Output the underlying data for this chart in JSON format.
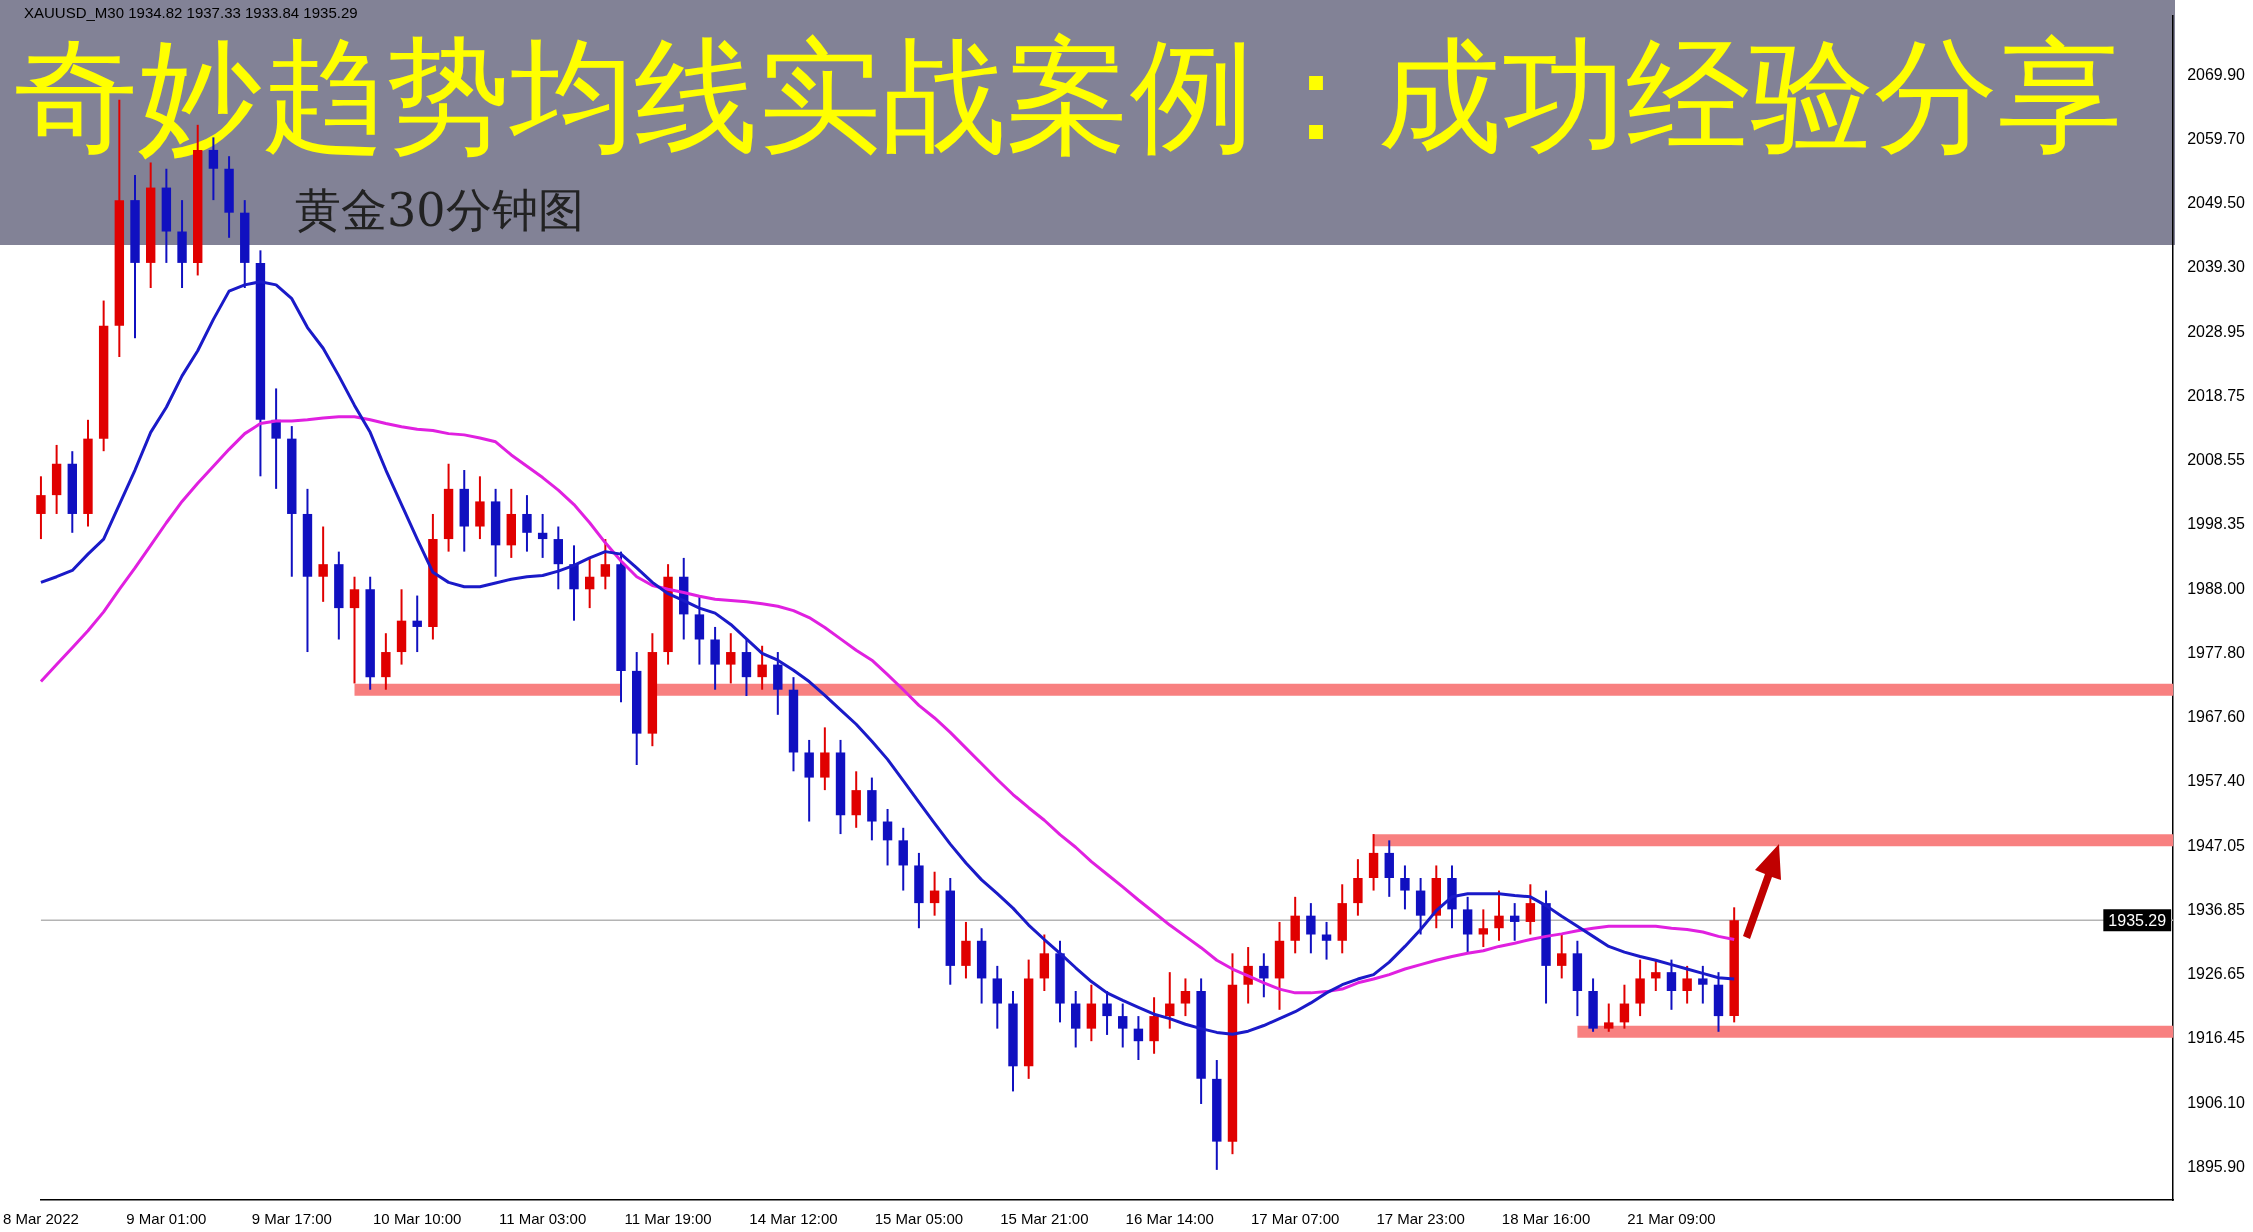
{
  "chart_data": {
    "type": "candlestick",
    "title": "奇妙趋势均线实战案例：成功经验分享",
    "subtitle": "黄金30分钟图",
    "annotations": [
      "XAUUSD_M30  1934.82 1937.33 1933.84 1935.29"
    ],
    "categories": [
      "8 Mar 2022",
      null,
      null,
      null,
      null,
      null,
      null,
      null,
      "9 Mar 01:00",
      null,
      null,
      null,
      null,
      null,
      null,
      null,
      "9 Mar 17:00",
      null,
      null,
      null,
      null,
      null,
      null,
      null,
      "10 Mar 10:00",
      null,
      null,
      null,
      null,
      null,
      null,
      null,
      "11 Mar 03:00",
      null,
      null,
      null,
      null,
      null,
      null,
      null,
      "11 Mar 19:00",
      null,
      null,
      null,
      null,
      null,
      null,
      null,
      "14 Mar 12:00",
      null,
      null,
      null,
      null,
      null,
      null,
      null,
      "15 Mar 05:00",
      null,
      null,
      null,
      null,
      null,
      null,
      null,
      "15 Mar 21:00",
      null,
      null,
      null,
      null,
      null,
      null,
      null,
      "16 Mar 14:00",
      null,
      null,
      null,
      null,
      null,
      null,
      null,
      "17 Mar 07:00",
      null,
      null,
      null,
      null,
      null,
      null,
      null,
      "17 Mar 23:00",
      null,
      null,
      null,
      null,
      null,
      null,
      null,
      "18 Mar 16:00",
      null,
      null,
      null,
      null,
      null,
      null,
      null,
      "21 Mar 09:00",
      null,
      null,
      null,
      null,
      null,
      null,
      null,
      null,
      null,
      null,
      null,
      null,
      null,
      null,
      null,
      null,
      null,
      null,
      null,
      null,
      null,
      null,
      null,
      null,
      null,
      null,
      null,
      null,
      null,
      null,
      null,
      null
    ],
    "ohlc": [
      [
        2000,
        2006,
        1996,
        2003
      ],
      [
        2003,
        2011,
        2000,
        2008
      ],
      [
        2008,
        2010,
        1997,
        2000
      ],
      [
        2000,
        2015,
        1998,
        2012
      ],
      [
        2012,
        2034,
        2010,
        2030
      ],
      [
        2030,
        2066,
        2025,
        2050
      ],
      [
        2050,
        2054,
        2028,
        2040
      ],
      [
        2040,
        2056,
        2036,
        2052
      ],
      [
        2052,
        2055,
        2040,
        2045
      ],
      [
        2045,
        2050,
        2036,
        2040
      ],
      [
        2040,
        2062,
        2038,
        2058
      ],
      [
        2058,
        2060,
        2050,
        2055
      ],
      [
        2055,
        2057,
        2044,
        2048
      ],
      [
        2048,
        2050,
        2036,
        2040
      ],
      [
        2040,
        2042,
        2006,
        2015
      ],
      [
        2015,
        2020,
        2004,
        2012
      ],
      [
        2012,
        2014,
        1990,
        2000
      ],
      [
        2000,
        2004,
        1978,
        1990
      ],
      [
        1990,
        1998,
        1986,
        1992
      ],
      [
        1992,
        1994,
        1980,
        1985
      ],
      [
        1985,
        1990,
        1973,
        1988
      ],
      [
        1988,
        1990,
        1972,
        1974
      ],
      [
        1974,
        1981,
        1972,
        1978
      ],
      [
        1978,
        1988,
        1976,
        1983
      ],
      [
        1983,
        1987,
        1978,
        1982
      ],
      [
        1982,
        2000,
        1980,
        1996
      ],
      [
        1996,
        2008,
        1994,
        2004
      ],
      [
        2004,
        2007,
        1994,
        1998
      ],
      [
        1998,
        2006,
        1996,
        2002
      ],
      [
        2002,
        2004,
        1990,
        1995
      ],
      [
        1995,
        2004,
        1993,
        2000
      ],
      [
        2000,
        2003,
        1994,
        1997
      ],
      [
        1997,
        2000,
        1993,
        1996
      ],
      [
        1996,
        1998,
        1988,
        1992
      ],
      [
        1992,
        1995,
        1983,
        1988
      ],
      [
        1988,
        1993,
        1985,
        1990
      ],
      [
        1990,
        1996,
        1988,
        1992
      ],
      [
        1992,
        1994,
        1970,
        1975
      ],
      [
        1975,
        1978,
        1960,
        1965
      ],
      [
        1965,
        1981,
        1963,
        1978
      ],
      [
        1978,
        1992,
        1976,
        1990
      ],
      [
        1990,
        1993,
        1980,
        1984
      ],
      [
        1984,
        1987,
        1976,
        1980
      ],
      [
        1980,
        1982,
        1972,
        1976
      ],
      [
        1976,
        1981,
        1973,
        1978
      ],
      [
        1978,
        1980,
        1971,
        1974
      ],
      [
        1974,
        1979,
        1972,
        1976
      ],
      [
        1976,
        1978,
        1968,
        1972
      ],
      [
        1972,
        1974,
        1959,
        1962
      ],
      [
        1962,
        1964,
        1951,
        1958
      ],
      [
        1958,
        1966,
        1956,
        1962
      ],
      [
        1962,
        1964,
        1949,
        1952
      ],
      [
        1952,
        1959,
        1950,
        1956
      ],
      [
        1956,
        1958,
        1948,
        1951
      ],
      [
        1951,
        1953,
        1944,
        1948
      ],
      [
        1948,
        1950,
        1940,
        1944
      ],
      [
        1944,
        1946,
        1934,
        1938
      ],
      [
        1938,
        1943,
        1936,
        1940
      ],
      [
        1940,
        1942,
        1925,
        1928
      ],
      [
        1928,
        1935,
        1926,
        1932
      ],
      [
        1932,
        1934,
        1922,
        1926
      ],
      [
        1926,
        1928,
        1918,
        1922
      ],
      [
        1922,
        1924,
        1908,
        1912
      ],
      [
        1912,
        1929,
        1910,
        1926
      ],
      [
        1926,
        1933,
        1924,
        1930
      ],
      [
        1930,
        1932,
        1919,
        1922
      ],
      [
        1922,
        1924,
        1915,
        1918
      ],
      [
        1918,
        1925,
        1916,
        1922
      ],
      [
        1922,
        1924,
        1917,
        1920
      ],
      [
        1920,
        1922,
        1915,
        1918
      ],
      [
        1918,
        1920,
        1913,
        1916
      ],
      [
        1916,
        1923,
        1914,
        1920
      ],
      [
        1920,
        1927,
        1918,
        1922
      ],
      [
        1922,
        1926,
        1920,
        1924
      ],
      [
        1924,
        1926,
        1906,
        1910
      ],
      [
        1910,
        1913,
        1895.5,
        1900
      ],
      [
        1900,
        1930,
        1898,
        1925
      ],
      [
        1925,
        1931,
        1922,
        1928
      ],
      [
        1928,
        1930,
        1923,
        1926
      ],
      [
        1926,
        1935,
        1921,
        1932
      ],
      [
        1932,
        1939,
        1930,
        1936
      ],
      [
        1936,
        1938,
        1930,
        1933
      ],
      [
        1933,
        1935,
        1929,
        1932
      ],
      [
        1932,
        1941,
        1930,
        1938
      ],
      [
        1938,
        1945,
        1936,
        1942
      ],
      [
        1942,
        1949,
        1940,
        1946
      ],
      [
        1946,
        1948,
        1939,
        1942
      ],
      [
        1942,
        1944,
        1937,
        1940
      ],
      [
        1940,
        1942,
        1933,
        1936
      ],
      [
        1936,
        1944,
        1934,
        1942
      ],
      [
        1942,
        1944,
        1934,
        1937
      ],
      [
        1937,
        1939,
        1930,
        1933
      ],
      [
        1933,
        1937,
        1931,
        1934
      ],
      [
        1934,
        1940,
        1932,
        1936
      ],
      [
        1936,
        1938,
        1932,
        1935
      ],
      [
        1935,
        1941,
        1933,
        1938
      ],
      [
        1938,
        1940,
        1922,
        1928
      ],
      [
        1928,
        1933,
        1926,
        1930
      ],
      [
        1930,
        1932,
        1920,
        1924
      ],
      [
        1924,
        1926,
        1917.5,
        1918
      ],
      [
        1918,
        1922,
        1917.5,
        1919
      ],
      [
        1919,
        1925,
        1918,
        1922
      ],
      [
        1922,
        1929,
        1920,
        1926
      ],
      [
        1926,
        1929,
        1924,
        1927
      ],
      [
        1927,
        1929,
        1921,
        1924
      ],
      [
        1924,
        1928,
        1922,
        1926
      ],
      [
        1926,
        1928,
        1922,
        1925
      ],
      [
        1925,
        1927,
        1917.5,
        1920
      ],
      [
        1920,
        1937.33,
        1919,
        1935.29
      ],
      null,
      null,
      null,
      null,
      null,
      null,
      null,
      null,
      null,
      null,
      null,
      null,
      null,
      null,
      null,
      null,
      null,
      null,
      null,
      null,
      null,
      null,
      null,
      null,
      null,
      null,
      null,
      null
    ],
    "colors": [
      "#e00000",
      "#e00000",
      "#1010c0",
      "#e00000",
      "#e00000",
      "#e00000",
      "#1010c0",
      "#e00000",
      "#1010c0",
      "#1010c0",
      "#e00000",
      "#1010c0",
      "#1010c0",
      "#1010c0",
      "#1010c0",
      "#1010c0",
      "#1010c0",
      "#1010c0",
      "#e00000",
      "#1010c0",
      "#e00000",
      "#1010c0",
      "#e00000",
      "#e00000",
      "#1010c0",
      "#e00000",
      "#e00000",
      "#1010c0",
      "#e00000",
      "#1010c0",
      "#e00000",
      "#1010c0",
      "#1010c0",
      "#1010c0",
      "#1010c0",
      "#e00000",
      "#e00000",
      "#1010c0",
      "#1010c0",
      "#e00000",
      "#e00000",
      "#1010c0",
      "#1010c0",
      "#1010c0",
      "#e00000",
      "#1010c0",
      "#e00000",
      "#1010c0",
      "#1010c0",
      "#1010c0",
      "#e00000",
      "#1010c0",
      "#e00000",
      "#1010c0",
      "#1010c0",
      "#1010c0",
      "#1010c0",
      "#e00000",
      "#1010c0",
      "#e00000",
      "#1010c0",
      "#1010c0",
      "#1010c0",
      "#e00000",
      "#e00000",
      "#1010c0",
      "#1010c0",
      "#e00000",
      "#1010c0",
      "#1010c0",
      "#1010c0",
      "#e00000",
      "#e00000",
      "#e00000",
      "#1010c0",
      "#1010c0",
      "#e00000",
      "#e00000",
      "#1010c0",
      "#e00000",
      "#e00000",
      "#1010c0",
      "#1010c0",
      "#e00000",
      "#e00000",
      "#e00000",
      "#1010c0",
      "#1010c0",
      "#1010c0",
      "#e00000",
      "#1010c0",
      "#1010c0",
      "#e00000",
      "#e00000",
      "#1010c0",
      "#e00000",
      "#1010c0",
      "#e00000",
      "#1010c0",
      "#1010c0",
      "#e00000",
      "#e00000",
      "#e00000",
      "#e00000",
      "#1010c0",
      "#e00000",
      "#1010c0",
      "#1010c0",
      "#e00000",
      null,
      null,
      null,
      null,
      null,
      null,
      null,
      null,
      null,
      null,
      null,
      null,
      null,
      null,
      null,
      null,
      null,
      null,
      null,
      null,
      null,
      null,
      null,
      null,
      null,
      null,
      null,
      null
    ],
    "series": [
      {
        "type": "line",
        "color": "#1a1ac8",
        "values": [
          1989.1,
          1990,
          1991,
          1993.6,
          1996,
          2001.5,
          2007,
          2013,
          2017,
          2022,
          2026,
          2031,
          2035.5,
          2036.5,
          2037,
          2036.5,
          2034.3,
          2029.7,
          2026.4,
          2022,
          2017.3,
          2013,
          2007,
          2001.5,
          1996,
          1990.7,
          1989.1,
          1988.4,
          1988.4,
          1989,
          1989.6,
          1990,
          1990.2,
          1990.9,
          1991.8,
          1993,
          1994,
          1993.6,
          1991.4,
          1989.1,
          1987.3,
          1986.2,
          1985,
          1984.2,
          1982.4,
          1980.1,
          1977.8,
          1976.7,
          1975.1,
          1973.3,
          1971.1,
          1968.8,
          1966.5,
          1963.8,
          1960.9,
          1957.5,
          1954.1,
          1950.7,
          1947.4,
          1944.4,
          1941.7,
          1939.5,
          1937.2,
          1934.5,
          1932.2,
          1930,
          1927.7,
          1925.5,
          1923.7,
          1922.5,
          1921.4,
          1920.3,
          1919.6,
          1918.7,
          1918,
          1917.4,
          1917.1,
          1917.6,
          1918.5,
          1919.6,
          1920.7,
          1922.1,
          1923.7,
          1925,
          1925.9,
          1926.6,
          1928.6,
          1931.1,
          1933.8,
          1936.8,
          1939,
          1939.5,
          1939.5,
          1939.5,
          1939.2,
          1939,
          1937.6,
          1935.9,
          1934.3,
          1932.7,
          1931.1,
          1930.2,
          1929.5,
          1928.9,
          1928.2,
          1927.5,
          1926.8,
          1926.1,
          1925.9,
          null,
          null,
          null,
          null,
          null,
          null,
          null,
          null,
          null,
          null,
          null,
          null,
          null,
          null,
          null,
          null,
          null,
          null,
          null,
          null,
          null,
          null,
          null,
          null,
          null,
          null,
          null,
          null
        ]
      },
      {
        "type": "line",
        "color": "#e020e0",
        "values": [
          1973.3,
          1976,
          1978.7,
          1981.4,
          1984.4,
          1988,
          1991.4,
          1995,
          1998.6,
          2002,
          2004.9,
          2007.6,
          2010.3,
          2012.8,
          2014.4,
          2014.8,
          2014.8,
          2015,
          2015.3,
          2015.5,
          2015.5,
          2015,
          2014.4,
          2013.9,
          2013.5,
          2013.3,
          2012.8,
          2012.6,
          2012.1,
          2011.5,
          2009.4,
          2007.6,
          2005.8,
          2003.8,
          2001.5,
          1998.6,
          1995.4,
          1992.5,
          1990,
          1988.6,
          1988,
          1987.5,
          1986.9,
          1986.4,
          1986.2,
          1986,
          1985.7,
          1985.3,
          1984.6,
          1983.5,
          1981.9,
          1980.1,
          1978.3,
          1976.7,
          1974.4,
          1972,
          1969.5,
          1967.5,
          1965.2,
          1962.7,
          1960.2,
          1957.7,
          1955.3,
          1953.2,
          1951.2,
          1948.9,
          1946.9,
          1944.6,
          1942.6,
          1940.6,
          1938.5,
          1936.5,
          1934.5,
          1932.7,
          1930.9,
          1928.9,
          1927.5,
          1926.4,
          1925.3,
          1924.3,
          1923.7,
          1923.7,
          1923.9,
          1924.3,
          1925.3,
          1925.9,
          1926.6,
          1927.5,
          1928.2,
          1928.9,
          1929.5,
          1930,
          1930.4,
          1931.1,
          1931.6,
          1932.2,
          1932.7,
          1933.1,
          1933.6,
          1934,
          1934.3,
          1934.3,
          1934.3,
          1934.3,
          1934,
          1933.8,
          1933.4,
          1932.7,
          1932.2,
          null,
          null,
          null,
          null,
          null,
          null,
          null,
          null,
          null,
          null,
          null,
          null,
          null,
          null,
          null,
          null,
          null,
          null,
          null,
          null,
          null,
          null,
          null,
          null,
          null,
          null,
          null,
          null
        ]
      },
      {
        "type": "line",
        "color": "#f88080",
        "values": [
          null,
          null,
          null,
          null,
          null,
          null,
          null,
          null,
          null,
          null,
          null,
          null,
          null,
          null,
          null,
          null,
          null,
          null,
          null,
          null,
          1972,
          1972,
          1972,
          1972,
          1972,
          1972,
          1972,
          1972,
          1972,
          1972,
          1972,
          1972,
          1972,
          1972,
          1972,
          1972,
          1972,
          1972,
          null,
          1972,
          1972,
          1972,
          1972,
          1972,
          1972,
          1972,
          1972,
          1972,
          1972,
          1972,
          1972,
          1972,
          1972,
          1972,
          1972,
          1972,
          1972,
          1972,
          1972,
          1972,
          1972,
          1972,
          1972,
          1972,
          1972,
          1972,
          1972,
          1972,
          1972,
          1972,
          1972,
          1972,
          1972,
          1972,
          1972,
          1972,
          1972,
          1972,
          1972,
          1972,
          1972,
          1972,
          1972,
          1972,
          1972,
          1972,
          1972,
          1972,
          1972,
          1972,
          1972,
          1972,
          1972,
          1972,
          1972,
          1972,
          1972,
          1972,
          1972,
          1972,
          1972,
          1972,
          1972,
          1972,
          1972,
          1972,
          1972,
          1972,
          1972,
          1972,
          1972,
          1972,
          1972,
          1972,
          1972,
          1972,
          1972,
          1972,
          1972,
          1972,
          1972,
          1972,
          1972,
          1972,
          1972,
          1972,
          1972,
          1972,
          1972,
          1972,
          1972,
          1972,
          1972,
          1972,
          1972,
          1972,
          1972
        ]
      },
      {
        "type": "line",
        "color": "#f88080",
        "values": [
          null,
          null,
          null,
          null,
          null,
          null,
          null,
          null,
          null,
          null,
          null,
          null,
          null,
          null,
          null,
          null,
          null,
          null,
          null,
          null,
          null,
          null,
          null,
          null,
          null,
          null,
          null,
          null,
          null,
          null,
          null,
          null,
          null,
          null,
          null,
          null,
          null,
          null,
          null,
          null,
          null,
          null,
          null,
          null,
          null,
          null,
          null,
          null,
          null,
          null,
          null,
          null,
          null,
          null,
          null,
          null,
          null,
          null,
          null,
          null,
          null,
          null,
          null,
          null,
          null,
          null,
          null,
          null,
          null,
          null,
          null,
          null,
          null,
          null,
          null,
          null,
          null,
          null,
          null,
          null,
          null,
          null,
          null,
          null,
          null,
          1948,
          1948,
          1948,
          1948,
          1948,
          1948,
          1948,
          1948,
          1948,
          1948,
          1948,
          1948,
          1948,
          1948,
          1948,
          1948,
          1948,
          1948,
          1948,
          1948,
          1948,
          1948,
          1948,
          1948,
          1948,
          1948,
          1948,
          1948,
          1948,
          1948,
          1948,
          1948,
          1948,
          1948,
          1948,
          1948,
          1948,
          1948,
          1948,
          1948,
          1948,
          1948,
          1948,
          1948,
          1948,
          1948,
          1948,
          1948,
          1948,
          1948,
          1948,
          1948
        ]
      },
      {
        "type": "line",
        "color": "#f88080",
        "values": [
          null,
          null,
          null,
          null,
          null,
          null,
          null,
          null,
          null,
          null,
          null,
          null,
          null,
          null,
          null,
          null,
          null,
          null,
          null,
          null,
          null,
          null,
          null,
          null,
          null,
          null,
          null,
          null,
          null,
          null,
          null,
          null,
          null,
          null,
          null,
          null,
          null,
          null,
          null,
          null,
          null,
          null,
          null,
          null,
          null,
          null,
          null,
          null,
          null,
          null,
          null,
          null,
          null,
          null,
          null,
          null,
          null,
          null,
          null,
          null,
          null,
          null,
          null,
          null,
          null,
          null,
          null,
          null,
          null,
          null,
          null,
          null,
          null,
          null,
          null,
          null,
          null,
          null,
          null,
          null,
          null,
          null,
          null,
          null,
          null,
          null,
          null,
          null,
          null,
          null,
          null,
          null,
          null,
          null,
          null,
          null,
          null,
          null,
          1917.5,
          1917.5,
          1917.5,
          1917.5,
          1917.5,
          1917.5,
          1917.5,
          1917.5,
          1917.5,
          1917.5,
          1917.5,
          1917.5,
          1917.5,
          1917.5,
          1917.5,
          1917.5,
          1917.5,
          1917.5,
          1917.5,
          1917.5,
          1917.5,
          1917.5,
          1917.5,
          1917.5,
          1917.5,
          1917.5,
          1917.5,
          1917.5,
          1917.5,
          1917.5,
          1917.5,
          1917.5,
          1917.5,
          1917.5,
          1917.5,
          1917.5,
          1917.5,
          1917.5,
          1917.5
        ]
      }
    ],
    "ylim": [
      1890.7,
      2079.4
    ],
    "yticks": [
      {
        "value": 1895.9,
        "label": "1895.90"
      },
      {
        "value": 1906.1,
        "label": "1906.10"
      },
      {
        "value": 1916.45,
        "label": "1916.45"
      },
      {
        "value": 1926.65,
        "label": "1926.65"
      },
      {
        "value": 1936.85,
        "label": "1936.85"
      },
      {
        "value": 1947.05,
        "label": "1947.05"
      },
      {
        "value": 1957.4,
        "label": "1957.40"
      },
      {
        "value": 1967.6,
        "label": "1967.60"
      },
      {
        "value": 1977.8,
        "label": "1977.80"
      },
      {
        "value": 1988,
        "label": "1988.00"
      },
      {
        "value": 1998.35,
        "label": "1998.35"
      },
      {
        "value": 2008.55,
        "label": "2008.55"
      },
      {
        "value": 2018.75,
        "label": "2018.75"
      },
      {
        "value": 2028.95,
        "label": "2028.95"
      },
      {
        "value": 2039.3,
        "label": "2039.30"
      },
      {
        "value": 2049.5,
        "label": "2049.50"
      },
      {
        "value": 2059.7,
        "label": "2059.70"
      },
      {
        "value": 2069.9,
        "label": "2069.90"
      }
    ],
    "ref_lines": [
      {
        "axis": "y",
        "value": 1935.29,
        "label": "1935.29",
        "color": "#b4b4b4"
      }
    ]
  }
}
